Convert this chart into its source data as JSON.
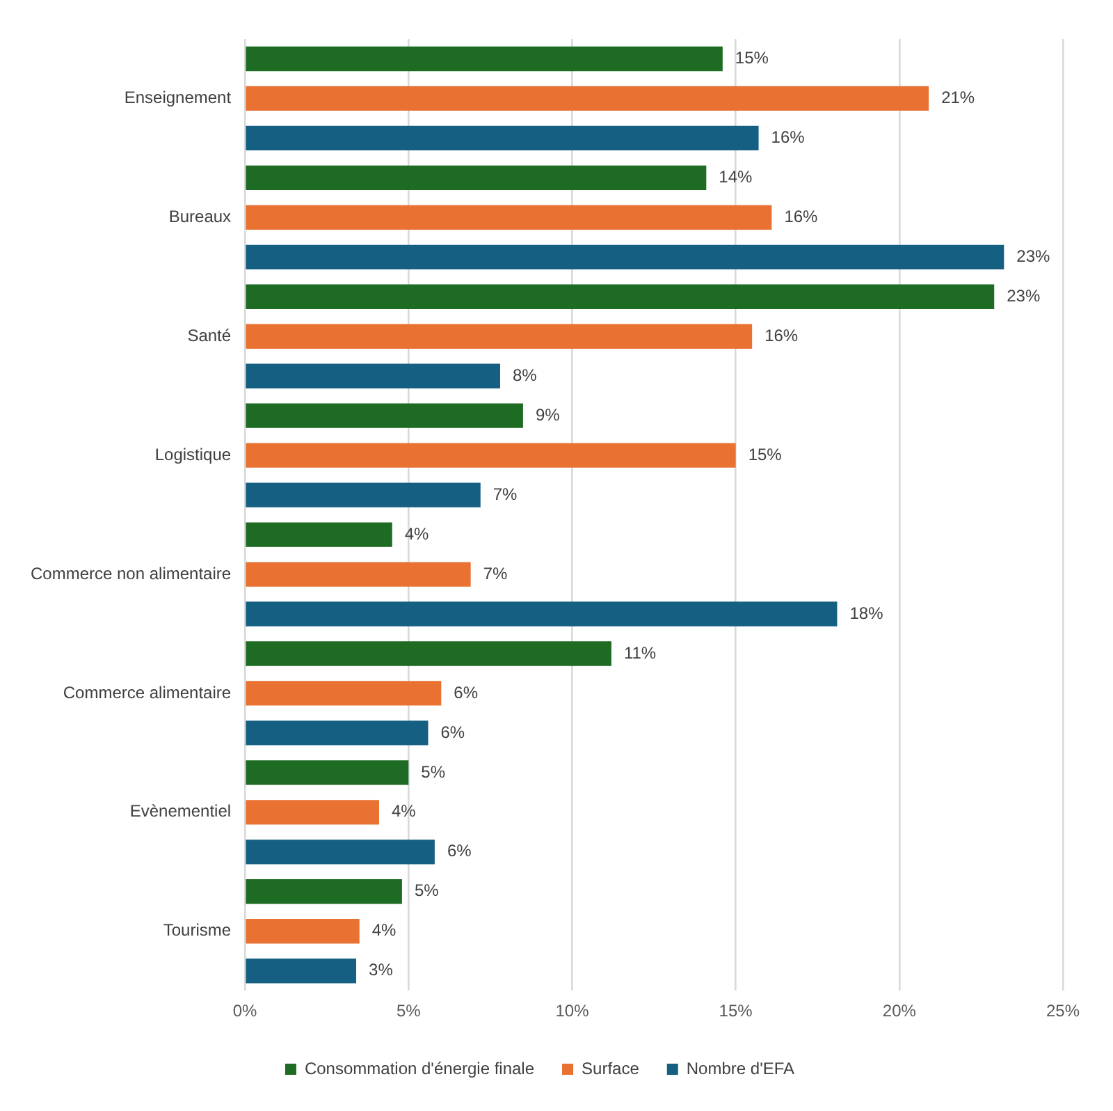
{
  "chart_data": {
    "type": "bar",
    "orientation": "horizontal",
    "categories": [
      "Enseignement",
      "Bureaux",
      "Santé",
      "Logistique",
      "Commerce non alimentaire",
      "Commerce alimentaire",
      "Evènementiel",
      "Tourisme"
    ],
    "series": [
      {
        "name": "Consommation d'énergie finale",
        "color": "#1e6b24",
        "values": [
          14.6,
          14.1,
          22.9,
          8.5,
          4.5,
          11.2,
          5.0,
          4.8
        ],
        "value_labels": [
          "15%",
          "14%",
          "23%",
          "9%",
          "4%",
          "11%",
          "5%",
          "5%"
        ]
      },
      {
        "name": "Surface",
        "color": "#e97132",
        "values": [
          20.9,
          16.1,
          15.5,
          15.0,
          6.9,
          6.0,
          4.1,
          3.5
        ],
        "value_labels": [
          "21%",
          "16%",
          "16%",
          "15%",
          "7%",
          "6%",
          "4%",
          "4%"
        ]
      },
      {
        "name": "Nombre d'EFA",
        "color": "#156082",
        "values": [
          15.7,
          23.2,
          7.8,
          7.2,
          18.1,
          5.6,
          5.8,
          3.4
        ],
        "value_labels": [
          "16%",
          "23%",
          "8%",
          "7%",
          "18%",
          "6%",
          "6%",
          "3%"
        ]
      }
    ],
    "xlim": [
      0,
      25
    ],
    "xticks": [
      {
        "value": 0,
        "label": "0%"
      },
      {
        "value": 5,
        "label": "5%"
      },
      {
        "value": 10,
        "label": "10%"
      },
      {
        "value": 15,
        "label": "15%"
      },
      {
        "value": 20,
        "label": "20%"
      },
      {
        "value": 25,
        "label": "25%"
      }
    ],
    "grid": "x",
    "legend": "bottom"
  }
}
